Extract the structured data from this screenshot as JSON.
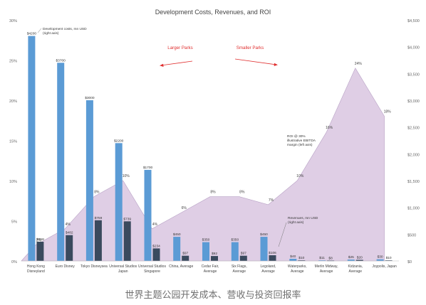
{
  "caption": "世界主题公园开发成本、营收与投资回报率",
  "chart_data": {
    "type": "bar",
    "title": "Development Costs, Revenues, and ROI",
    "categories": [
      [
        "Hong Kong",
        "Disneyland"
      ],
      [
        "Euro Disney"
      ],
      [
        "Tokyo Disneysea"
      ],
      [
        "Universal Studios",
        "Japan"
      ],
      [
        "Universal Studios",
        "Singapore"
      ],
      [
        "China, Average"
      ],
      [
        "Cedar Fair,",
        "Average"
      ],
      [
        "Six Flags,",
        "Average"
      ],
      [
        "Legoland,",
        "Average"
      ],
      [
        "Waterparks,",
        "Average"
      ],
      [
        "Merlin Midway,",
        "Average"
      ],
      [
        "Kidzania,",
        "Average"
      ],
      [
        "Joypolis, Japan"
      ]
    ],
    "series": [
      {
        "name": "Development costs, mn USD (right axis)",
        "axis": "right",
        "color": "#5b9bd5",
        "values": [
          4200,
          3700,
          3000,
          2200,
          1700,
          450,
          350,
          350,
          450,
          40,
          11,
          25,
          30
        ],
        "labels": [
          "$4200",
          "$3700",
          "$3000",
          "$2200",
          "$1700",
          "$450",
          "$350",
          "$350",
          "$450",
          "$40",
          "$11",
          "$25",
          "$30"
        ]
      },
      {
        "name": "Revenues, mn USD (right axis)",
        "axis": "right",
        "color": "#3a4a5e",
        "values": [
          358,
          482,
          759,
          739,
          234,
          97,
          92,
          97,
          106,
          10,
          8,
          20,
          10
        ],
        "labels": [
          "$358",
          "$482",
          "$759",
          "$739",
          "$234",
          "$97",
          "$92",
          "$97",
          "$106",
          "$10",
          "$8",
          "$20",
          "$10"
        ]
      },
      {
        "name": "ROI @ 30% illustrative EBITDA margin (left axis)",
        "axis": "left",
        "type": "area",
        "color": "#d9c6e0",
        "values": [
          2,
          4,
          8,
          10,
          4,
          6,
          8,
          8,
          7,
          10,
          16,
          24,
          18
        ],
        "labels": [
          "2%",
          "4%",
          "8%",
          "10%",
          "4%",
          "6%",
          "8%",
          "8%",
          "7%",
          "10%",
          "16%",
          "24%",
          "18%"
        ]
      }
    ],
    "annotations": [
      {
        "text": [
          "Development costs, mn USD",
          "(right axis)"
        ],
        "series": 0
      },
      {
        "text": [
          "Revenues, mn USD",
          "(right axis)"
        ],
        "series": 1
      },
      {
        "text": [
          "ROI @ 30%",
          "illustrative EBITDA",
          "margin (left axis)"
        ],
        "series": 2
      },
      {
        "text": [
          "Larger Parks"
        ],
        "color": "#e03030",
        "arrow": "left"
      },
      {
        "text": [
          "Smaller Parks"
        ],
        "color": "#e03030",
        "arrow": "right"
      }
    ],
    "y_left": {
      "min": 0,
      "max": 30,
      "step": 5,
      "tick_labels": [
        "0%",
        "5%",
        "10%",
        "15%",
        "20%",
        "25%",
        "30%"
      ]
    },
    "y_right": {
      "min": 0,
      "max": 4500,
      "step": 500,
      "tick_labels": [
        "$0",
        "$500",
        "$1,000",
        "$1,500",
        "$2,000",
        "$2,500",
        "$3,000",
        "$3,500",
        "$4,000",
        "$4,500"
      ]
    },
    "grid": false,
    "xlabel": "",
    "ylabel": ""
  }
}
